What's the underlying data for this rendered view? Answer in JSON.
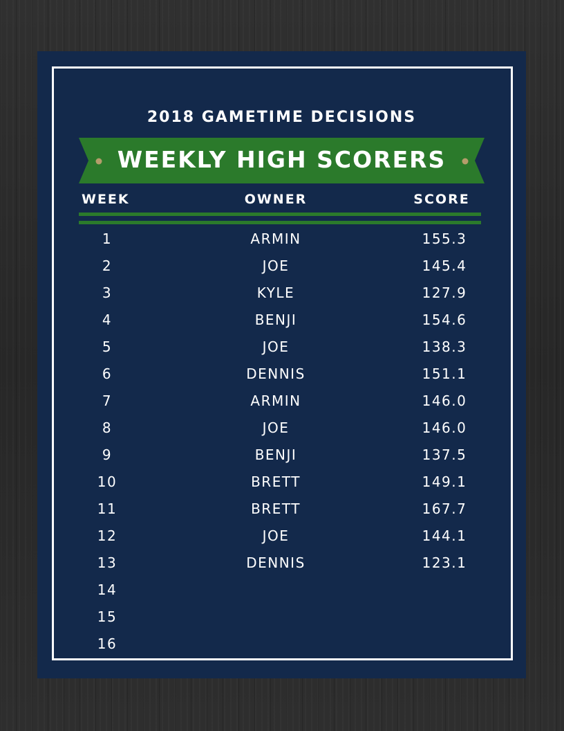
{
  "document": {
    "subtitle": "2018 GAMETIME DECISIONS",
    "title": "WEEKLY HIGH SCORERS"
  },
  "columns": {
    "week": "WEEK",
    "owner": "OWNER",
    "score": "SCORE"
  },
  "rows": [
    {
      "week": "1",
      "owner": "ARMIN",
      "score": "155.3"
    },
    {
      "week": "2",
      "owner": "JOE",
      "score": "145.4"
    },
    {
      "week": "3",
      "owner": "KYLE",
      "score": "127.9"
    },
    {
      "week": "4",
      "owner": "BENJI",
      "score": "154.6"
    },
    {
      "week": "5",
      "owner": "JOE",
      "score": "138.3"
    },
    {
      "week": "6",
      "owner": "DENNIS",
      "score": "151.1"
    },
    {
      "week": "7",
      "owner": "ARMIN",
      "score": "146.0"
    },
    {
      "week": "8",
      "owner": "JOE",
      "score": "146.0"
    },
    {
      "week": "9",
      "owner": "BENJI",
      "score": "137.5"
    },
    {
      "week": "10",
      "owner": "BRETT",
      "score": "149.1"
    },
    {
      "week": "11",
      "owner": "BRETT",
      "score": "167.7"
    },
    {
      "week": "12",
      "owner": "JOE",
      "score": "144.1"
    },
    {
      "week": "13",
      "owner": "DENNIS",
      "score": "123.1"
    },
    {
      "week": "14",
      "owner": "",
      "score": ""
    },
    {
      "week": "15",
      "owner": "",
      "score": ""
    },
    {
      "week": "16",
      "owner": "",
      "score": ""
    }
  ],
  "colors": {
    "navy": "#13294b",
    "green": "#2b7a2b",
    "gold_dot": "#b59d6b",
    "white": "#ffffff"
  }
}
